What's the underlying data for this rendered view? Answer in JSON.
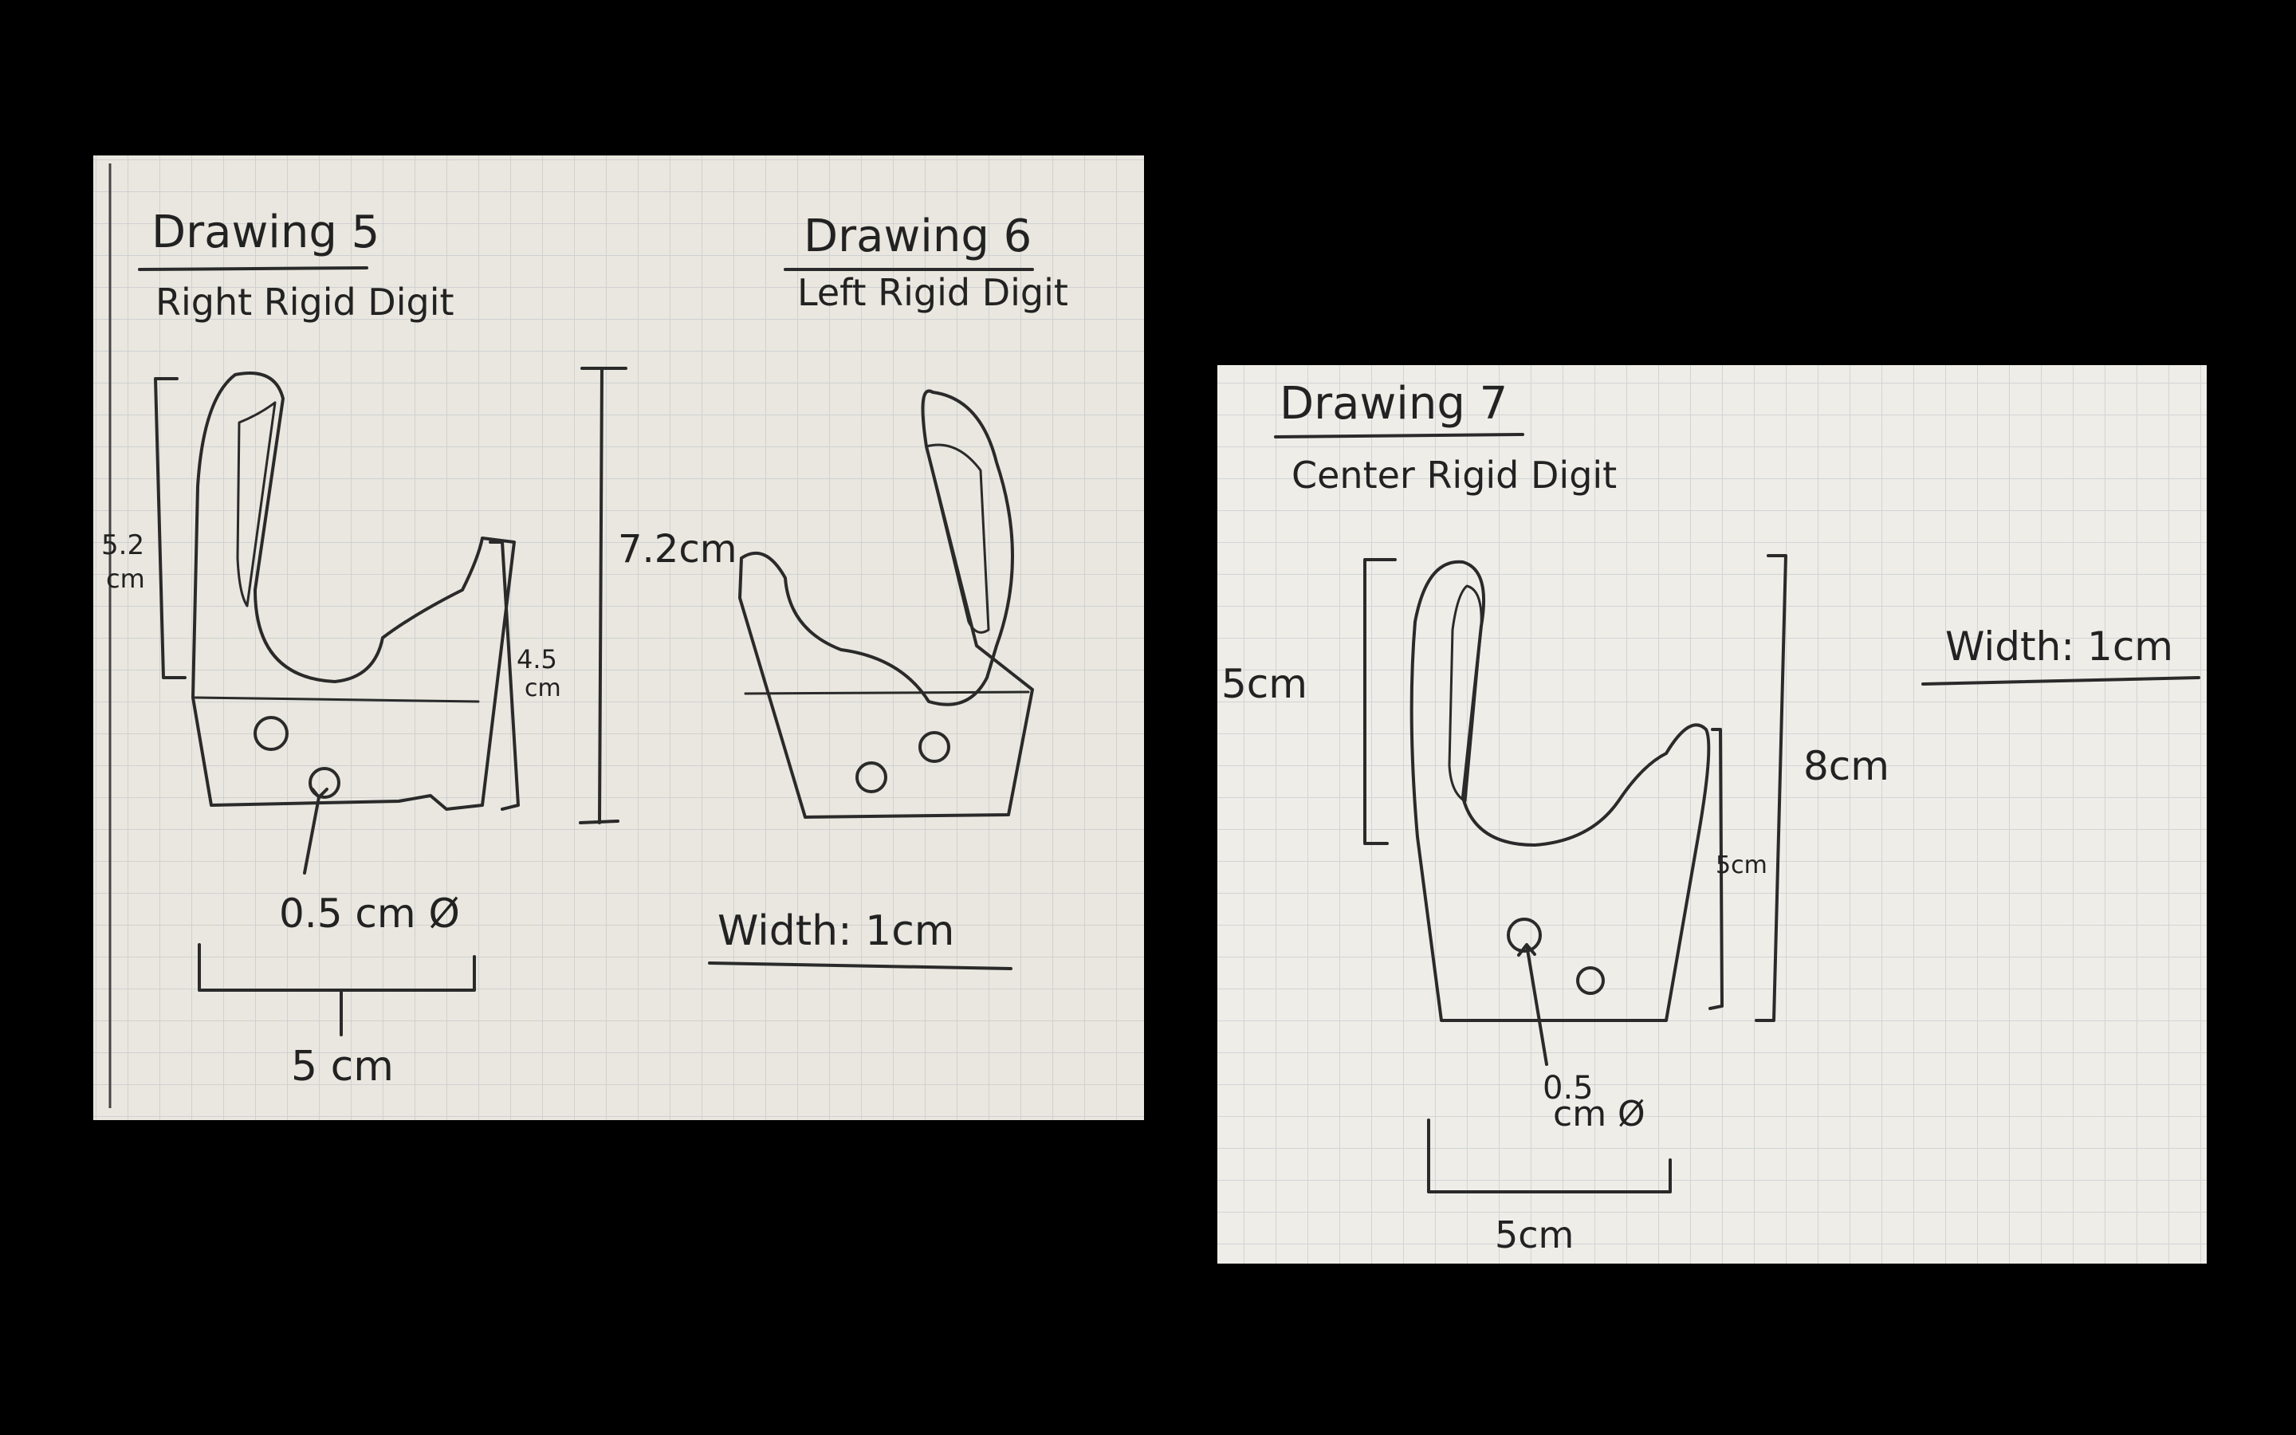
{
  "colors": {
    "background": "#000000",
    "paper_left": "#e9e7df",
    "paper_right": "#eeede8",
    "grid_line": "#c9cbcf",
    "ink": "#2a2a2a"
  },
  "sheet_left": {
    "drawing5": {
      "title": "Drawing 5",
      "subtitle": "Right Rigid Digit",
      "dim_finger": "5.2",
      "dim_finger_unit": "cm",
      "dim_thumb": "4.5",
      "dim_thumb_unit": "cm",
      "dim_height": "7.2cm",
      "hole_label": "0.5 cm Ø",
      "dim_width": "5 cm"
    },
    "drawing6": {
      "title": "Drawing 6",
      "subtitle": "Left Rigid Digit",
      "thickness": "Width: 1cm"
    }
  },
  "sheet_right": {
    "drawing7": {
      "title": "Drawing 7",
      "subtitle": "Center Rigid Digit",
      "dim_finger": "5cm",
      "dim_thumb": "5cm",
      "dim_height": "8cm",
      "hole_label_line1": "0.5",
      "hole_label_line2": "cm Ø",
      "dim_width": "5cm",
      "thickness": "Width: 1cm"
    }
  }
}
